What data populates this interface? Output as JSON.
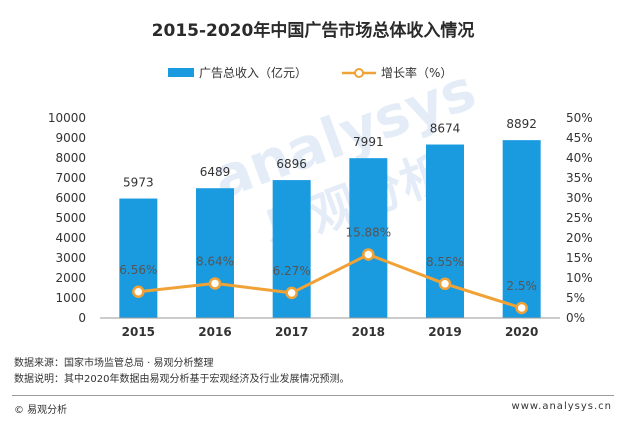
{
  "chart_data": {
    "type": "bar+line",
    "title": "2015-2020年中国广告市场总体收入情况",
    "categories": [
      "2015",
      "2016",
      "2017",
      "2018",
      "2019",
      "2020"
    ],
    "series": [
      {
        "name": "广告总收入（亿元）",
        "type": "bar",
        "axis": "left",
        "values": [
          5973,
          6489,
          6896,
          7991,
          8674,
          8892
        ],
        "color": "#1a9be0"
      },
      {
        "name": "增长率（%）",
        "type": "line",
        "axis": "right",
        "values": [
          6.56,
          8.64,
          6.27,
          15.88,
          8.55,
          2.5
        ],
        "color": "#f0a236"
      }
    ],
    "bar_labels": [
      "5973",
      "6489",
      "6896",
      "7991",
      "8674",
      "8892"
    ],
    "line_labels": [
      "6.56%",
      "8.64%",
      "6.27%",
      "15.88%",
      "8.55%",
      "2.5%"
    ],
    "left_axis": {
      "ylim": [
        0,
        10000
      ],
      "ticks": [
        "0",
        "1000",
        "2000",
        "3000",
        "4000",
        "5000",
        "6000",
        "7000",
        "8000",
        "9000",
        "10000"
      ]
    },
    "right_axis": {
      "ylim": [
        0,
        50
      ],
      "ticks": [
        "0%",
        "5%",
        "10%",
        "15%",
        "20%",
        "25%",
        "30%",
        "35%",
        "40%",
        "45%",
        "50%"
      ]
    },
    "legend_position": "top-center",
    "grid": false
  },
  "watermark": {
    "text_en": "analysys",
    "text_cn": "易观分析"
  },
  "footer": {
    "source": "数据来源：国家市场监管总局 · 易观分析整理",
    "note": "数据说明：其中2020年数据由易观分析基于宏观经济及行业发展情况预测。",
    "copyright": "© 易观分析",
    "website": "www.analysys.cn"
  }
}
